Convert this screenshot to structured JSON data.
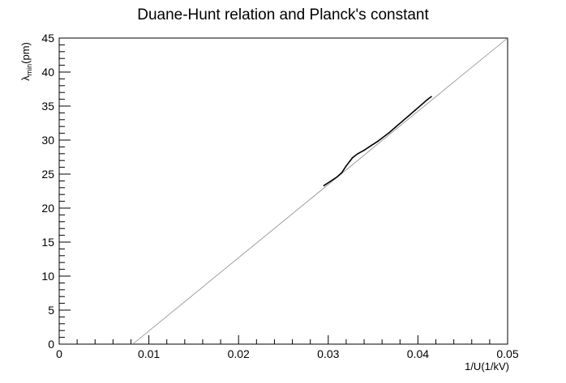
{
  "chart_data": {
    "type": "line",
    "title": "Duane-Hunt relation and Planck's constant",
    "xlabel": "1/U(1/kV)",
    "ylabel_main": "λ",
    "ylabel_sub": "min",
    "ylabel_unit": "(pm)",
    "xlim": [
      0,
      0.05
    ],
    "ylim": [
      0,
      45
    ],
    "x_ticks": [
      0,
      0.01,
      0.02,
      0.03,
      0.04,
      0.05
    ],
    "x_tick_labels": [
      "0",
      "0.01",
      "0.02",
      "0.03",
      "0.04",
      "0.05"
    ],
    "y_ticks": [
      0,
      5,
      10,
      15,
      20,
      25,
      30,
      35,
      40,
      45
    ],
    "y_tick_labels": [
      "0",
      "5",
      "10",
      "15",
      "20",
      "25",
      "30",
      "35",
      "40",
      "45"
    ],
    "grid": false,
    "series": [
      {
        "kind": "fit-line",
        "color": "#888888",
        "x": [
          0.0082,
          0.05
        ],
        "y": [
          0,
          45
        ]
      },
      {
        "kind": "data",
        "color": "#000000",
        "x": [
          0.0295,
          0.0302,
          0.031,
          0.0315,
          0.032,
          0.0327,
          0.0333,
          0.034,
          0.0348,
          0.0355,
          0.036,
          0.0368,
          0.0375,
          0.0382,
          0.039,
          0.0397,
          0.0404,
          0.041,
          0.0415
        ],
        "y": [
          23.3,
          23.9,
          24.6,
          25.2,
          26.2,
          27.4,
          28.0,
          28.5,
          29.2,
          29.8,
          30.3,
          31.1,
          31.9,
          32.7,
          33.6,
          34.4,
          35.2,
          35.9,
          36.4
        ]
      }
    ]
  }
}
